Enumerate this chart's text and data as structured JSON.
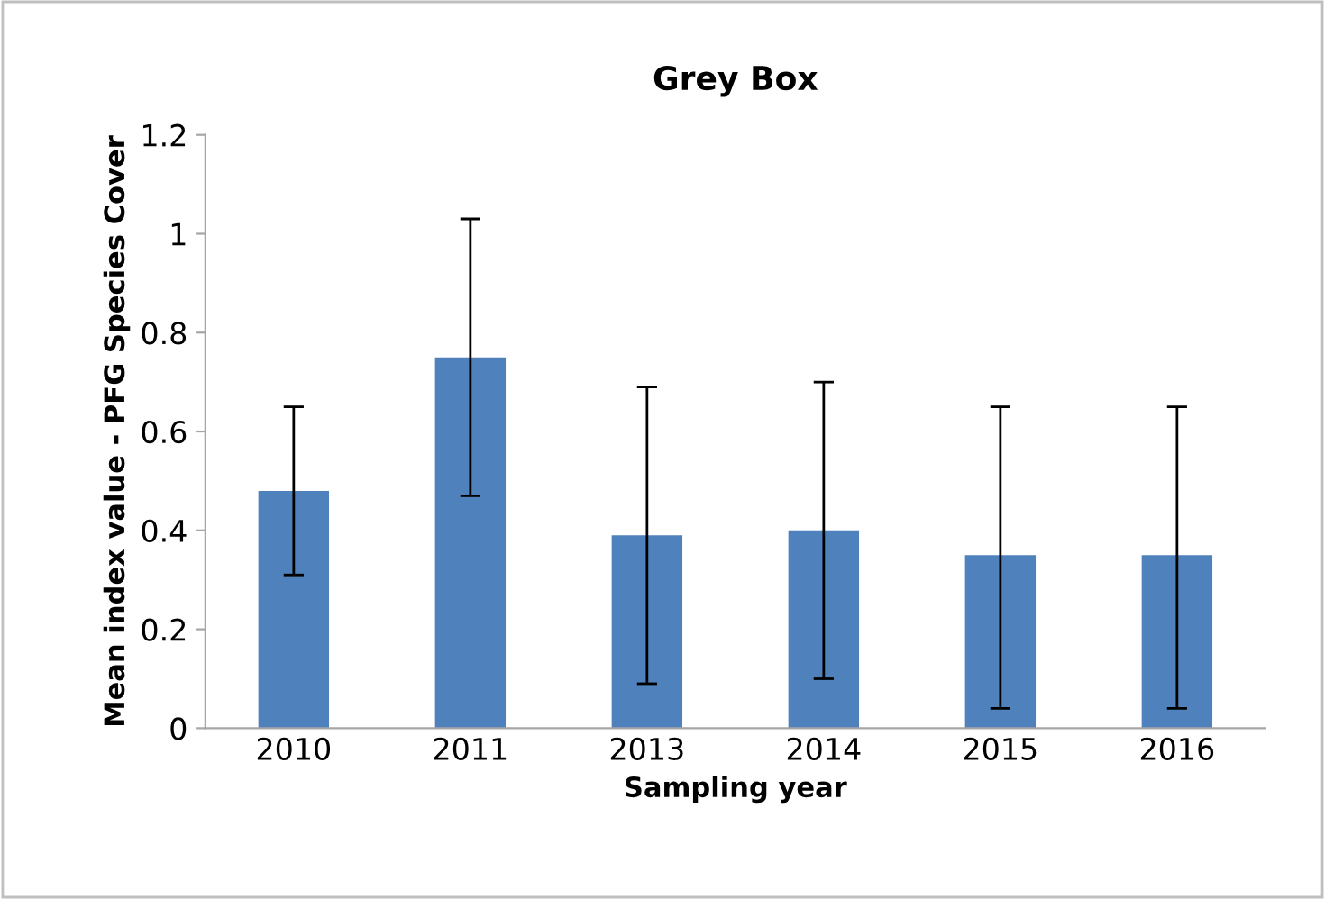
{
  "chart_data": {
    "type": "bar",
    "title": "Grey Box",
    "xlabel": "Sampling year",
    "ylabel": "Mean index value - PFG Species Cover",
    "categories": [
      "2010",
      "2011",
      "2013",
      "2014",
      "2015",
      "2016"
    ],
    "values": [
      0.48,
      0.75,
      0.39,
      0.4,
      0.35,
      0.35
    ],
    "errors": [
      [
        0.31,
        0.65
      ],
      [
        0.47,
        1.03
      ],
      [
        0.09,
        0.69
      ],
      [
        0.1,
        0.7
      ],
      [
        0.04,
        0.65
      ],
      [
        0.04,
        0.65
      ]
    ],
    "color": "#4f81bd",
    "ylim": [
      0,
      1.2
    ],
    "yticks": [
      0,
      0.2,
      0.4,
      0.6,
      0.8,
      1,
      1.2
    ],
    "grid": false
  }
}
